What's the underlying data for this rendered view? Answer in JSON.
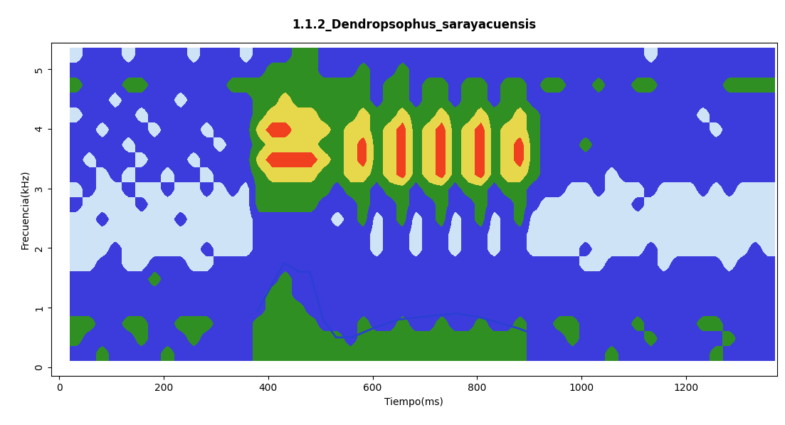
{
  "chart_data": {
    "type": "spectrogram",
    "title": "1.1.2_Dendropsophus_sarayacuensis",
    "x_label": "Tiempo(ms)",
    "y_label": "Frecuencia(kHz)",
    "xlim": [
      -16,
      1375
    ],
    "ylim": [
      -0.15,
      5.45
    ],
    "xticks": [
      0,
      200,
      400,
      600,
      800,
      1000,
      1200
    ],
    "yticks": [
      0,
      1,
      2,
      3,
      4,
      5
    ],
    "x_range": [
      20,
      1370
    ],
    "y_range": [
      0.1,
      5.35
    ],
    "cell_levels": [
      1,
      2,
      3,
      4,
      5
    ],
    "colors": [
      "#cfe3f7",
      "#3c3cdc",
      "#2f8f22",
      "#e6d84a",
      "#f04020"
    ],
    "cells": [
      [
        2,
        2,
        3,
        2,
        2,
        2,
        2,
        3,
        2,
        2,
        2,
        2,
        2,
        2,
        3,
        3,
        3,
        3,
        3,
        3,
        3,
        3,
        3,
        3,
        3,
        3,
        3,
        3,
        3,
        3,
        3,
        3,
        3,
        3,
        3,
        2,
        2,
        2,
        2,
        2,
        2,
        3,
        2,
        2,
        2,
        2,
        2,
        2,
        2,
        3,
        2,
        2,
        2,
        2
      ],
      [
        3,
        2,
        2,
        2,
        2,
        3,
        2,
        2,
        2,
        3,
        2,
        2,
        2,
        2,
        3,
        3,
        3,
        3,
        3,
        3,
        3,
        2,
        3,
        3,
        3,
        3,
        3,
        3,
        3,
        3,
        3,
        3,
        3,
        3,
        3,
        2,
        2,
        2,
        3,
        2,
        2,
        2,
        2,
        2,
        3,
        2,
        2,
        2,
        2,
        2,
        3,
        2,
        2,
        2
      ],
      [
        3,
        3,
        2,
        2,
        3,
        3,
        2,
        2,
        3,
        3,
        3,
        2,
        2,
        2,
        3,
        3,
        3,
        3,
        3,
        2,
        2,
        2,
        3,
        2,
        2,
        3,
        2,
        2,
        3,
        2,
        2,
        3,
        2,
        2,
        3,
        2,
        2,
        3,
        3,
        2,
        2,
        2,
        2,
        3,
        2,
        2,
        2,
        2,
        3,
        3,
        2,
        2,
        2,
        2
      ],
      [
        2,
        2,
        2,
        2,
        2,
        2,
        2,
        2,
        2,
        2,
        2,
        2,
        2,
        2,
        2,
        3,
        3,
        3,
        2,
        2,
        2,
        2,
        2,
        2,
        2,
        2,
        2,
        2,
        2,
        2,
        2,
        2,
        2,
        2,
        2,
        2,
        2,
        2,
        2,
        2,
        2,
        2,
        2,
        2,
        2,
        2,
        2,
        2,
        2,
        2,
        2,
        2,
        2,
        2
      ],
      [
        2,
        2,
        2,
        2,
        2,
        2,
        2,
        2,
        2,
        2,
        2,
        2,
        2,
        2,
        2,
        3,
        3,
        2,
        2,
        2,
        2,
        2,
        2,
        2,
        2,
        2,
        2,
        2,
        2,
        2,
        2,
        2,
        2,
        2,
        2,
        2,
        2,
        2,
        2,
        2,
        2,
        2,
        2,
        2,
        2,
        2,
        2,
        2,
        2,
        2,
        2,
        2,
        2,
        2
      ],
      [
        2,
        2,
        2,
        2,
        2,
        2,
        3,
        2,
        2,
        2,
        2,
        2,
        2,
        2,
        2,
        2,
        3,
        2,
        2,
        2,
        2,
        2,
        2,
        2,
        2,
        2,
        2,
        2,
        2,
        2,
        2,
        2,
        2,
        2,
        2,
        2,
        2,
        2,
        2,
        2,
        2,
        2,
        2,
        2,
        2,
        2,
        2,
        2,
        2,
        2,
        2,
        2,
        2,
        2
      ],
      [
        1,
        1,
        2,
        2,
        1,
        1,
        2,
        2,
        2,
        1,
        1,
        2,
        2,
        2,
        2,
        2,
        2,
        2,
        2,
        2,
        2,
        2,
        2,
        2,
        2,
        2,
        2,
        2,
        2,
        2,
        2,
        2,
        2,
        2,
        2,
        2,
        2,
        2,
        2,
        1,
        1,
        2,
        2,
        2,
        2,
        1,
        2,
        2,
        2,
        2,
        1,
        2,
        2,
        2
      ],
      [
        1,
        1,
        1,
        2,
        1,
        1,
        1,
        1,
        1,
        1,
        2,
        1,
        1,
        1,
        2,
        2,
        2,
        2,
        2,
        2,
        2,
        2,
        2,
        1,
        2,
        2,
        1,
        2,
        2,
        1,
        2,
        2,
        1,
        2,
        2,
        1,
        1,
        1,
        1,
        2,
        1,
        1,
        1,
        1,
        2,
        1,
        1,
        1,
        1,
        1,
        1,
        1,
        2,
        1
      ],
      [
        1,
        1,
        1,
        1,
        1,
        1,
        1,
        1,
        1,
        1,
        1,
        1,
        1,
        1,
        2,
        2,
        2,
        2,
        2,
        2,
        2,
        2,
        2,
        1,
        2,
        2,
        1,
        2,
        2,
        1,
        2,
        2,
        1,
        2,
        2,
        1,
        1,
        1,
        1,
        1,
        1,
        1,
        1,
        1,
        1,
        1,
        1,
        1,
        1,
        1,
        1,
        1,
        1,
        1
      ],
      [
        1,
        1,
        2,
        1,
        1,
        1,
        1,
        1,
        2,
        1,
        1,
        1,
        1,
        1,
        2,
        2,
        2,
        2,
        2,
        2,
        1,
        2,
        3,
        1,
        2,
        3,
        1,
        2,
        3,
        1,
        2,
        3,
        1,
        2,
        3,
        1,
        1,
        1,
        1,
        1,
        1,
        1,
        1,
        1,
        1,
        1,
        1,
        1,
        1,
        1,
        1,
        1,
        1,
        1
      ],
      [
        2,
        1,
        1,
        1,
        1,
        2,
        1,
        1,
        1,
        1,
        1,
        1,
        1,
        1,
        3,
        3,
        3,
        3,
        3,
        2,
        2,
        2,
        3,
        2,
        2,
        3,
        2,
        2,
        3,
        2,
        2,
        3,
        2,
        2,
        3,
        2,
        1,
        1,
        1,
        1,
        1,
        1,
        1,
        2,
        1,
        1,
        1,
        1,
        1,
        1,
        1,
        1,
        1,
        1
      ],
      [
        1,
        2,
        1,
        1,
        2,
        1,
        1,
        2,
        1,
        1,
        2,
        1,
        2,
        1,
        3,
        3,
        3,
        3,
        3,
        3,
        2,
        3,
        3,
        2,
        3,
        3,
        2,
        3,
        3,
        2,
        3,
        3,
        2,
        3,
        3,
        2,
        2,
        2,
        1,
        1,
        2,
        1,
        1,
        1,
        2,
        1,
        1,
        1,
        2,
        1,
        2,
        1,
        1,
        1
      ],
      [
        2,
        2,
        1,
        2,
        1,
        2,
        2,
        1,
        2,
        2,
        1,
        2,
        2,
        2,
        3,
        4,
        4,
        4,
        4,
        3,
        3,
        4,
        4,
        3,
        4,
        5,
        3,
        4,
        5,
        3,
        4,
        5,
        3,
        4,
        4,
        3,
        2,
        2,
        2,
        2,
        2,
        1,
        2,
        2,
        2,
        2,
        2,
        2,
        2,
        2,
        2,
        2,
        2,
        2
      ],
      [
        2,
        1,
        2,
        2,
        2,
        1,
        2,
        2,
        2,
        1,
        2,
        2,
        2,
        2,
        4,
        5,
        5,
        5,
        5,
        4,
        3,
        4,
        5,
        3,
        4,
        5,
        3,
        4,
        5,
        3,
        4,
        5,
        3,
        4,
        5,
        3,
        2,
        2,
        2,
        2,
        2,
        2,
        2,
        2,
        2,
        2,
        2,
        2,
        2,
        2,
        2,
        2,
        2,
        2
      ],
      [
        2,
        2,
        2,
        2,
        1,
        2,
        2,
        2,
        2,
        2,
        2,
        1,
        2,
        2,
        3,
        4,
        4,
        4,
        4,
        3,
        3,
        4,
        5,
        3,
        4,
        5,
        3,
        4,
        5,
        3,
        4,
        5,
        3,
        4,
        5,
        3,
        2,
        2,
        2,
        3,
        2,
        2,
        2,
        2,
        2,
        2,
        2,
        2,
        2,
        2,
        2,
        2,
        2,
        2
      ],
      [
        2,
        2,
        1,
        2,
        2,
        2,
        1,
        2,
        2,
        2,
        1,
        2,
        2,
        2,
        4,
        5,
        5,
        4,
        4,
        4,
        3,
        4,
        4,
        3,
        4,
        5,
        3,
        4,
        5,
        3,
        4,
        5,
        3,
        4,
        4,
        3,
        2,
        2,
        2,
        2,
        2,
        2,
        2,
        2,
        2,
        2,
        2,
        2,
        2,
        1,
        2,
        2,
        2,
        2
      ],
      [
        1,
        2,
        2,
        2,
        2,
        1,
        2,
        2,
        2,
        2,
        2,
        2,
        2,
        2,
        3,
        4,
        4,
        4,
        4,
        3,
        3,
        3,
        4,
        3,
        3,
        4,
        3,
        3,
        4,
        3,
        3,
        4,
        3,
        3,
        4,
        3,
        2,
        2,
        2,
        2,
        2,
        2,
        2,
        2,
        2,
        2,
        2,
        2,
        1,
        2,
        2,
        2,
        2,
        2
      ],
      [
        2,
        2,
        2,
        1,
        2,
        2,
        2,
        2,
        1,
        2,
        2,
        2,
        2,
        2,
        3,
        3,
        4,
        3,
        3,
        3,
        3,
        3,
        3,
        2,
        3,
        3,
        2,
        3,
        3,
        2,
        3,
        3,
        2,
        3,
        3,
        2,
        2,
        2,
        2,
        2,
        2,
        2,
        2,
        2,
        2,
        2,
        2,
        2,
        2,
        2,
        2,
        2,
        2,
        2
      ],
      [
        3,
        2,
        2,
        2,
        3,
        3,
        2,
        2,
        2,
        2,
        2,
        2,
        3,
        3,
        3,
        3,
        3,
        3,
        3,
        3,
        3,
        3,
        3,
        2,
        3,
        3,
        2,
        3,
        3,
        2,
        3,
        3,
        2,
        3,
        3,
        2,
        3,
        3,
        2,
        2,
        3,
        2,
        2,
        3,
        3,
        2,
        2,
        2,
        2,
        2,
        3,
        3,
        3,
        3
      ],
      [
        2,
        2,
        2,
        2,
        2,
        2,
        2,
        2,
        2,
        2,
        2,
        2,
        2,
        2,
        2,
        3,
        3,
        3,
        3,
        2,
        2,
        2,
        3,
        2,
        2,
        3,
        2,
        2,
        2,
        2,
        2,
        2,
        2,
        2,
        2,
        2,
        2,
        2,
        2,
        2,
        2,
        2,
        2,
        2,
        2,
        2,
        2,
        2,
        2,
        2,
        2,
        2,
        2,
        2
      ],
      [
        1,
        2,
        2,
        2,
        1,
        2,
        2,
        2,
        2,
        1,
        2,
        2,
        2,
        1,
        2,
        2,
        2,
        3,
        3,
        2,
        2,
        2,
        2,
        2,
        2,
        2,
        2,
        2,
        2,
        2,
        2,
        2,
        2,
        2,
        2,
        2,
        2,
        2,
        2,
        2,
        2,
        2,
        2,
        2,
        1,
        2,
        2,
        2,
        2,
        2,
        2,
        2,
        2,
        2
      ]
    ],
    "series": [
      {
        "type": "line",
        "color": "#2a3fd4",
        "x": [
          380,
          430,
          460,
          480,
          505,
          530,
          560,
          600,
          650,
          700,
          760,
          800,
          840,
          880,
          895
        ],
        "values": [
          0.95,
          1.75,
          1.6,
          1.6,
          0.8,
          0.5,
          0.5,
          0.65,
          0.8,
          0.85,
          0.9,
          0.85,
          0.75,
          0.65,
          0.6
        ]
      }
    ]
  }
}
